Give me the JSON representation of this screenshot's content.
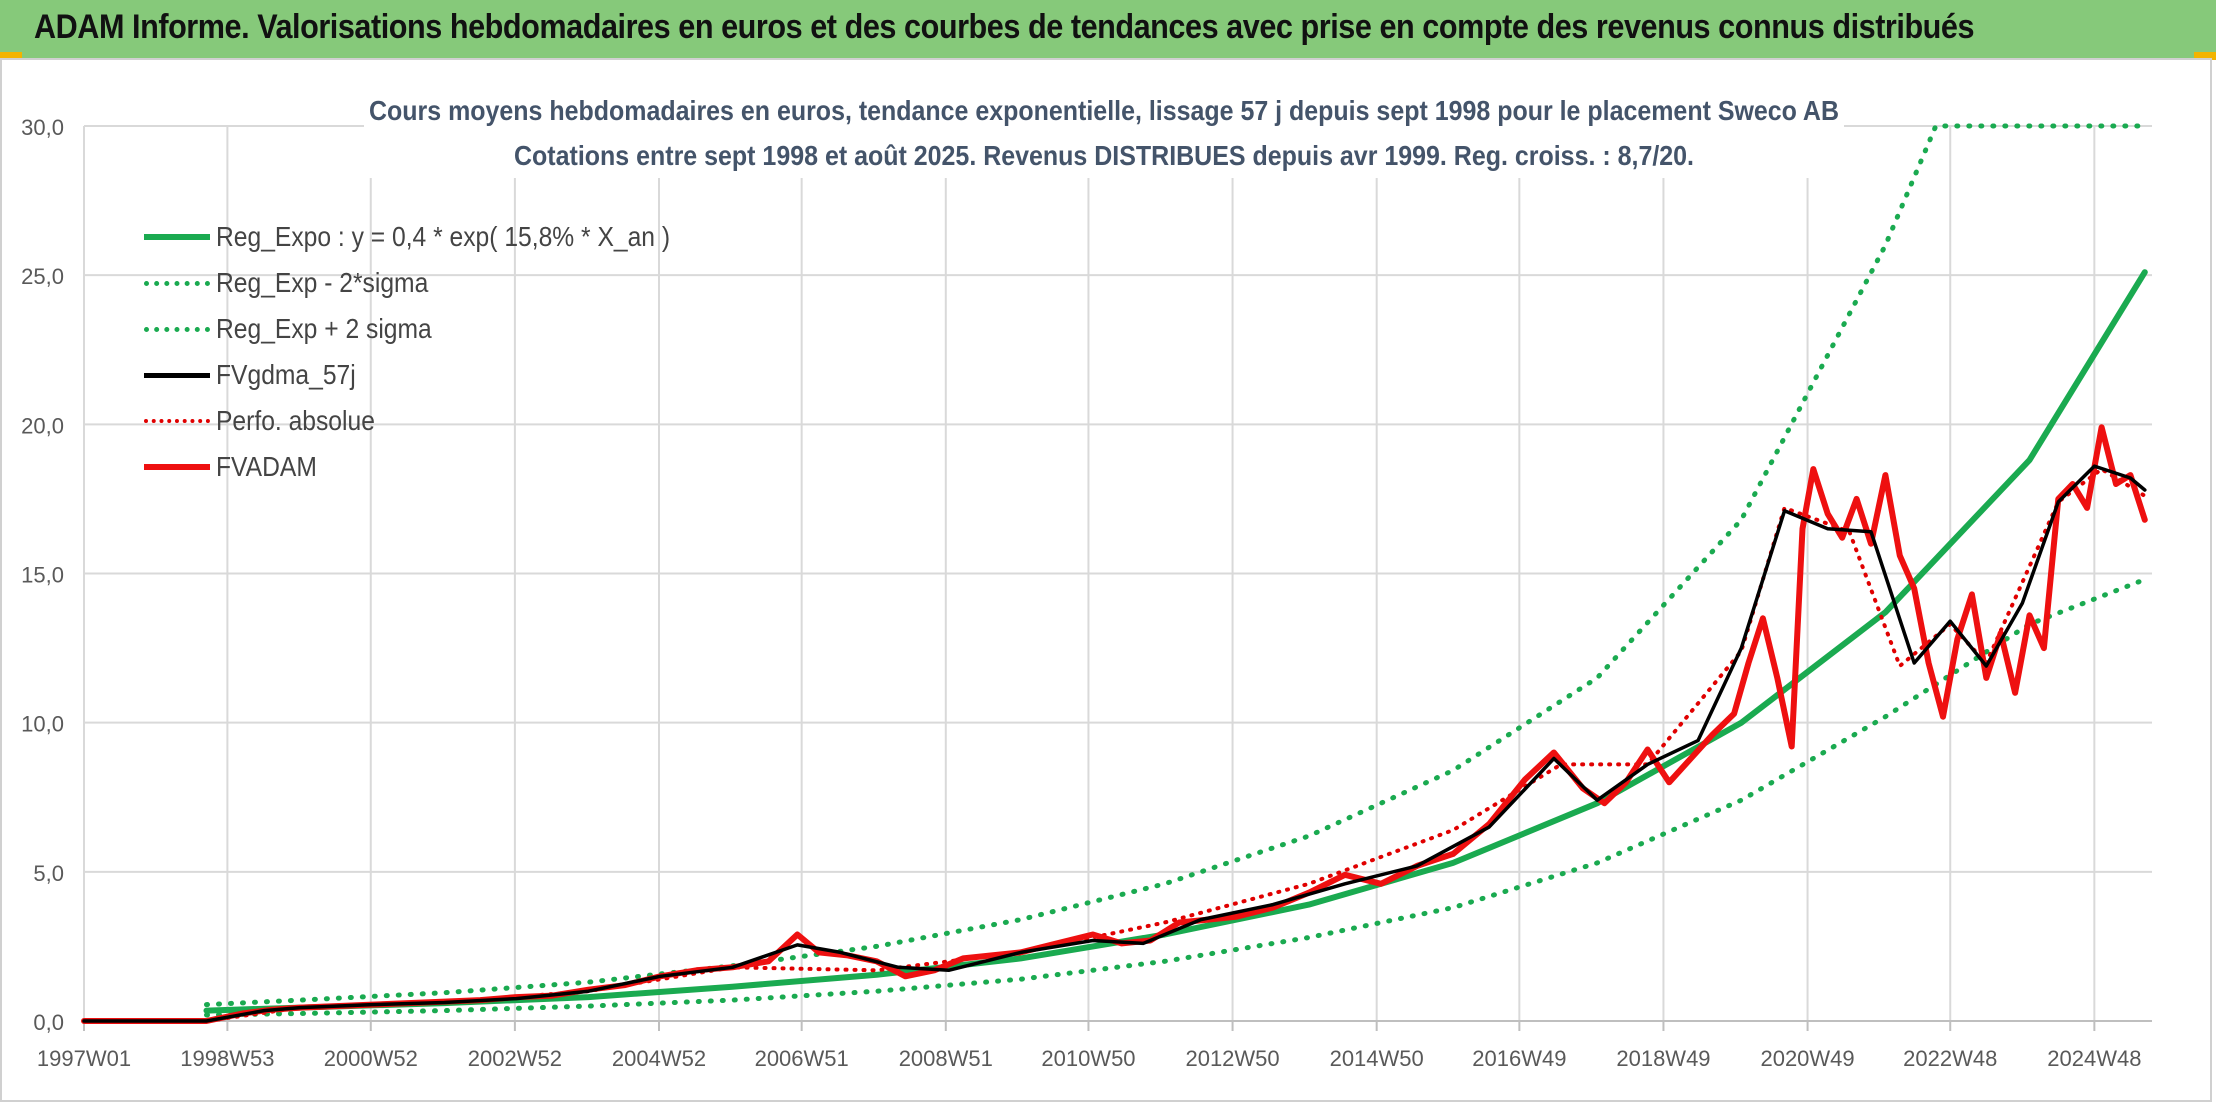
{
  "header": {
    "title": "ADAM Informe. Valorisations hebdomadaires en euros et des courbes de tendances avec prise en compte des revenus connus distribués"
  },
  "chart_data": {
    "type": "line",
    "title": "Cours moyens hebdomadaires en euros, tendance exponentielle, lissage 57 j depuis sept 1998 pour le placement Sweco AB",
    "subtitle": "Cotations entre sept 1998 et août 2025. Revenus DISTRIBUES depuis avr 1999. Reg. croiss. : 8,7/20.",
    "xlabel": "",
    "ylabel": "",
    "ylim": [
      0,
      30
    ],
    "yticks": [
      "0,0",
      "5,0",
      "10,0",
      "15,0",
      "20,0",
      "25,0",
      "30,0"
    ],
    "xlim": [
      1997.0,
      2025.7
    ],
    "xticks": [
      {
        "x": 1997.0,
        "label": "1997W01"
      },
      {
        "x": 1998.99,
        "label": "1998W53"
      },
      {
        "x": 2000.98,
        "label": "2000W52"
      },
      {
        "x": 2002.98,
        "label": "2002W52"
      },
      {
        "x": 2004.98,
        "label": "2004W52"
      },
      {
        "x": 2006.96,
        "label": "2006W51"
      },
      {
        "x": 2008.96,
        "label": "2008W51"
      },
      {
        "x": 2010.94,
        "label": "2010W50"
      },
      {
        "x": 2012.94,
        "label": "2012W50"
      },
      {
        "x": 2014.94,
        "label": "2014W50"
      },
      {
        "x": 2016.92,
        "label": "2016W49"
      },
      {
        "x": 2018.92,
        "label": "2018W49"
      },
      {
        "x": 2020.92,
        "label": "2020W49"
      },
      {
        "x": 2022.9,
        "label": "2022W48"
      },
      {
        "x": 2024.9,
        "label": "2024W48"
      }
    ],
    "grid": true,
    "legend_position": "top-left",
    "series": [
      {
        "name": "Reg_Expo : y = 0,4 * exp( 15,8% *  X_an )",
        "color": "#1aaa50",
        "style": "solid-thick",
        "x": [
          1998.7,
          2000,
          2002,
          2004,
          2006,
          2008,
          2010,
          2012,
          2014,
          2016,
          2018,
          2020,
          2022,
          2024,
          2025.6
        ],
        "values": [
          0.35,
          0.45,
          0.6,
          0.8,
          1.15,
          1.55,
          2.1,
          2.9,
          3.9,
          5.3,
          7.3,
          10.0,
          13.7,
          18.8,
          25.1
        ]
      },
      {
        "name": "Reg_Exp - 2*sigma",
        "color": "#1aaa50",
        "style": "dotted",
        "x": [
          1998.7,
          2000,
          2002,
          2004,
          2006,
          2008,
          2010,
          2012,
          2014,
          2016,
          2018,
          2020,
          2022,
          2024,
          2025.6
        ],
        "values": [
          0.2,
          0.25,
          0.35,
          0.5,
          0.7,
          1.0,
          1.4,
          2.0,
          2.8,
          3.8,
          5.3,
          7.4,
          10.2,
          13.3,
          14.8
        ]
      },
      {
        "name": "Reg_Exp + 2 sigma",
        "color": "#1aaa50",
        "style": "dotted",
        "x": [
          1998.7,
          2000,
          2002,
          2004,
          2006,
          2008,
          2010,
          2012,
          2014,
          2016,
          2018,
          2020,
          2022,
          2022.7,
          2025.6
        ],
        "values": [
          0.55,
          0.7,
          0.95,
          1.3,
          1.85,
          2.5,
          3.4,
          4.6,
          6.2,
          8.4,
          11.5,
          16.8,
          26.0,
          30.0,
          30.0
        ]
      },
      {
        "name": "FVgdma_57j",
        "color": "#000000",
        "style": "solid",
        "x": [
          1997.0,
          1998.7,
          1999.5,
          2000,
          2001,
          2002,
          2003,
          2004,
          2005,
          2006,
          2006.9,
          2007.5,
          2008.3,
          2009,
          2010,
          2011,
          2011.7,
          2012.5,
          2013.5,
          2014.5,
          2015.5,
          2016.5,
          2017.4,
          2018,
          2018.7,
          2019.4,
          2020,
          2020.6,
          2021.2,
          2021.8,
          2022.4,
          2022.9,
          2023.4,
          2023.9,
          2024.4,
          2024.9,
          2025.4,
          2025.6
        ],
        "values": [
          0.0,
          0.0,
          0.35,
          0.45,
          0.55,
          0.62,
          0.75,
          1.0,
          1.5,
          1.8,
          2.55,
          2.3,
          1.8,
          1.7,
          2.3,
          2.7,
          2.6,
          3.4,
          3.9,
          4.6,
          5.2,
          6.5,
          8.8,
          7.4,
          8.6,
          9.4,
          12.5,
          17.1,
          16.5,
          16.4,
          12.0,
          13.4,
          11.9,
          14.0,
          17.4,
          18.6,
          18.2,
          17.8
        ]
      },
      {
        "name": "Perfo. absolue",
        "color": "#e00000",
        "style": "dotted",
        "x": [
          1997.0,
          1998.7,
          2000,
          2002,
          2004,
          2006,
          2008,
          2010,
          2012,
          2014,
          2016,
          2017.5,
          2018.7,
          2020,
          2020.6,
          2021.5,
          2022.2,
          2022.9,
          2023.4,
          2024.4,
          2025.0,
          2025.6
        ],
        "values": [
          0.0,
          0.0,
          0.45,
          0.62,
          1.0,
          1.8,
          1.7,
          2.3,
          3.3,
          4.6,
          6.4,
          8.6,
          8.6,
          12.4,
          17.2,
          16.4,
          11.9,
          13.3,
          12.0,
          17.4,
          18.5,
          17.6
        ]
      },
      {
        "name": "FVADAM",
        "color": "#ee1010",
        "style": "solid-thick",
        "x": [
          1997.0,
          1998.7,
          1999.2,
          1999.6,
          2000.0,
          2000.5,
          2001.0,
          2001.5,
          2002.0,
          2002.5,
          2003.0,
          2003.5,
          2004.0,
          2004.5,
          2005.0,
          2005.5,
          2006.0,
          2006.5,
          2006.9,
          2007.2,
          2007.6,
          2008.0,
          2008.4,
          2008.8,
          2009.2,
          2009.6,
          2010.0,
          2010.5,
          2011.0,
          2011.4,
          2011.8,
          2012.2,
          2012.6,
          2013.0,
          2013.5,
          2014.0,
          2014.5,
          2015.0,
          2015.5,
          2016.0,
          2016.5,
          2017.0,
          2017.4,
          2017.8,
          2018.1,
          2018.4,
          2018.7,
          2019.0,
          2019.3,
          2019.6,
          2019.9,
          2020.1,
          2020.3,
          2020.5,
          2020.7,
          2020.85,
          2021.0,
          2021.2,
          2021.4,
          2021.6,
          2021.8,
          2022.0,
          2022.2,
          2022.4,
          2022.6,
          2022.8,
          2023.0,
          2023.2,
          2023.4,
          2023.6,
          2023.8,
          2024.0,
          2024.2,
          2024.4,
          2024.6,
          2024.8,
          2025.0,
          2025.2,
          2025.4,
          2025.6
        ],
        "values": [
          0.0,
          0.0,
          0.25,
          0.38,
          0.45,
          0.5,
          0.55,
          0.6,
          0.65,
          0.7,
          0.8,
          0.85,
          1.05,
          1.2,
          1.5,
          1.7,
          1.8,
          2.0,
          2.9,
          2.3,
          2.2,
          2.0,
          1.5,
          1.7,
          2.1,
          2.2,
          2.3,
          2.6,
          2.9,
          2.6,
          2.7,
          3.3,
          3.4,
          3.5,
          3.8,
          4.3,
          4.9,
          4.6,
          5.2,
          5.6,
          6.6,
          8.1,
          9.0,
          7.8,
          7.3,
          8.0,
          9.1,
          8.0,
          8.8,
          9.6,
          10.3,
          12.0,
          13.5,
          11.5,
          9.2,
          16.5,
          18.5,
          17.0,
          16.2,
          17.5,
          16.0,
          18.3,
          15.6,
          14.5,
          12.0,
          10.2,
          12.8,
          14.3,
          11.5,
          13.0,
          11.0,
          13.6,
          12.5,
          17.5,
          18.0,
          17.2,
          19.9,
          18.0,
          18.3,
          16.8
        ]
      }
    ]
  }
}
